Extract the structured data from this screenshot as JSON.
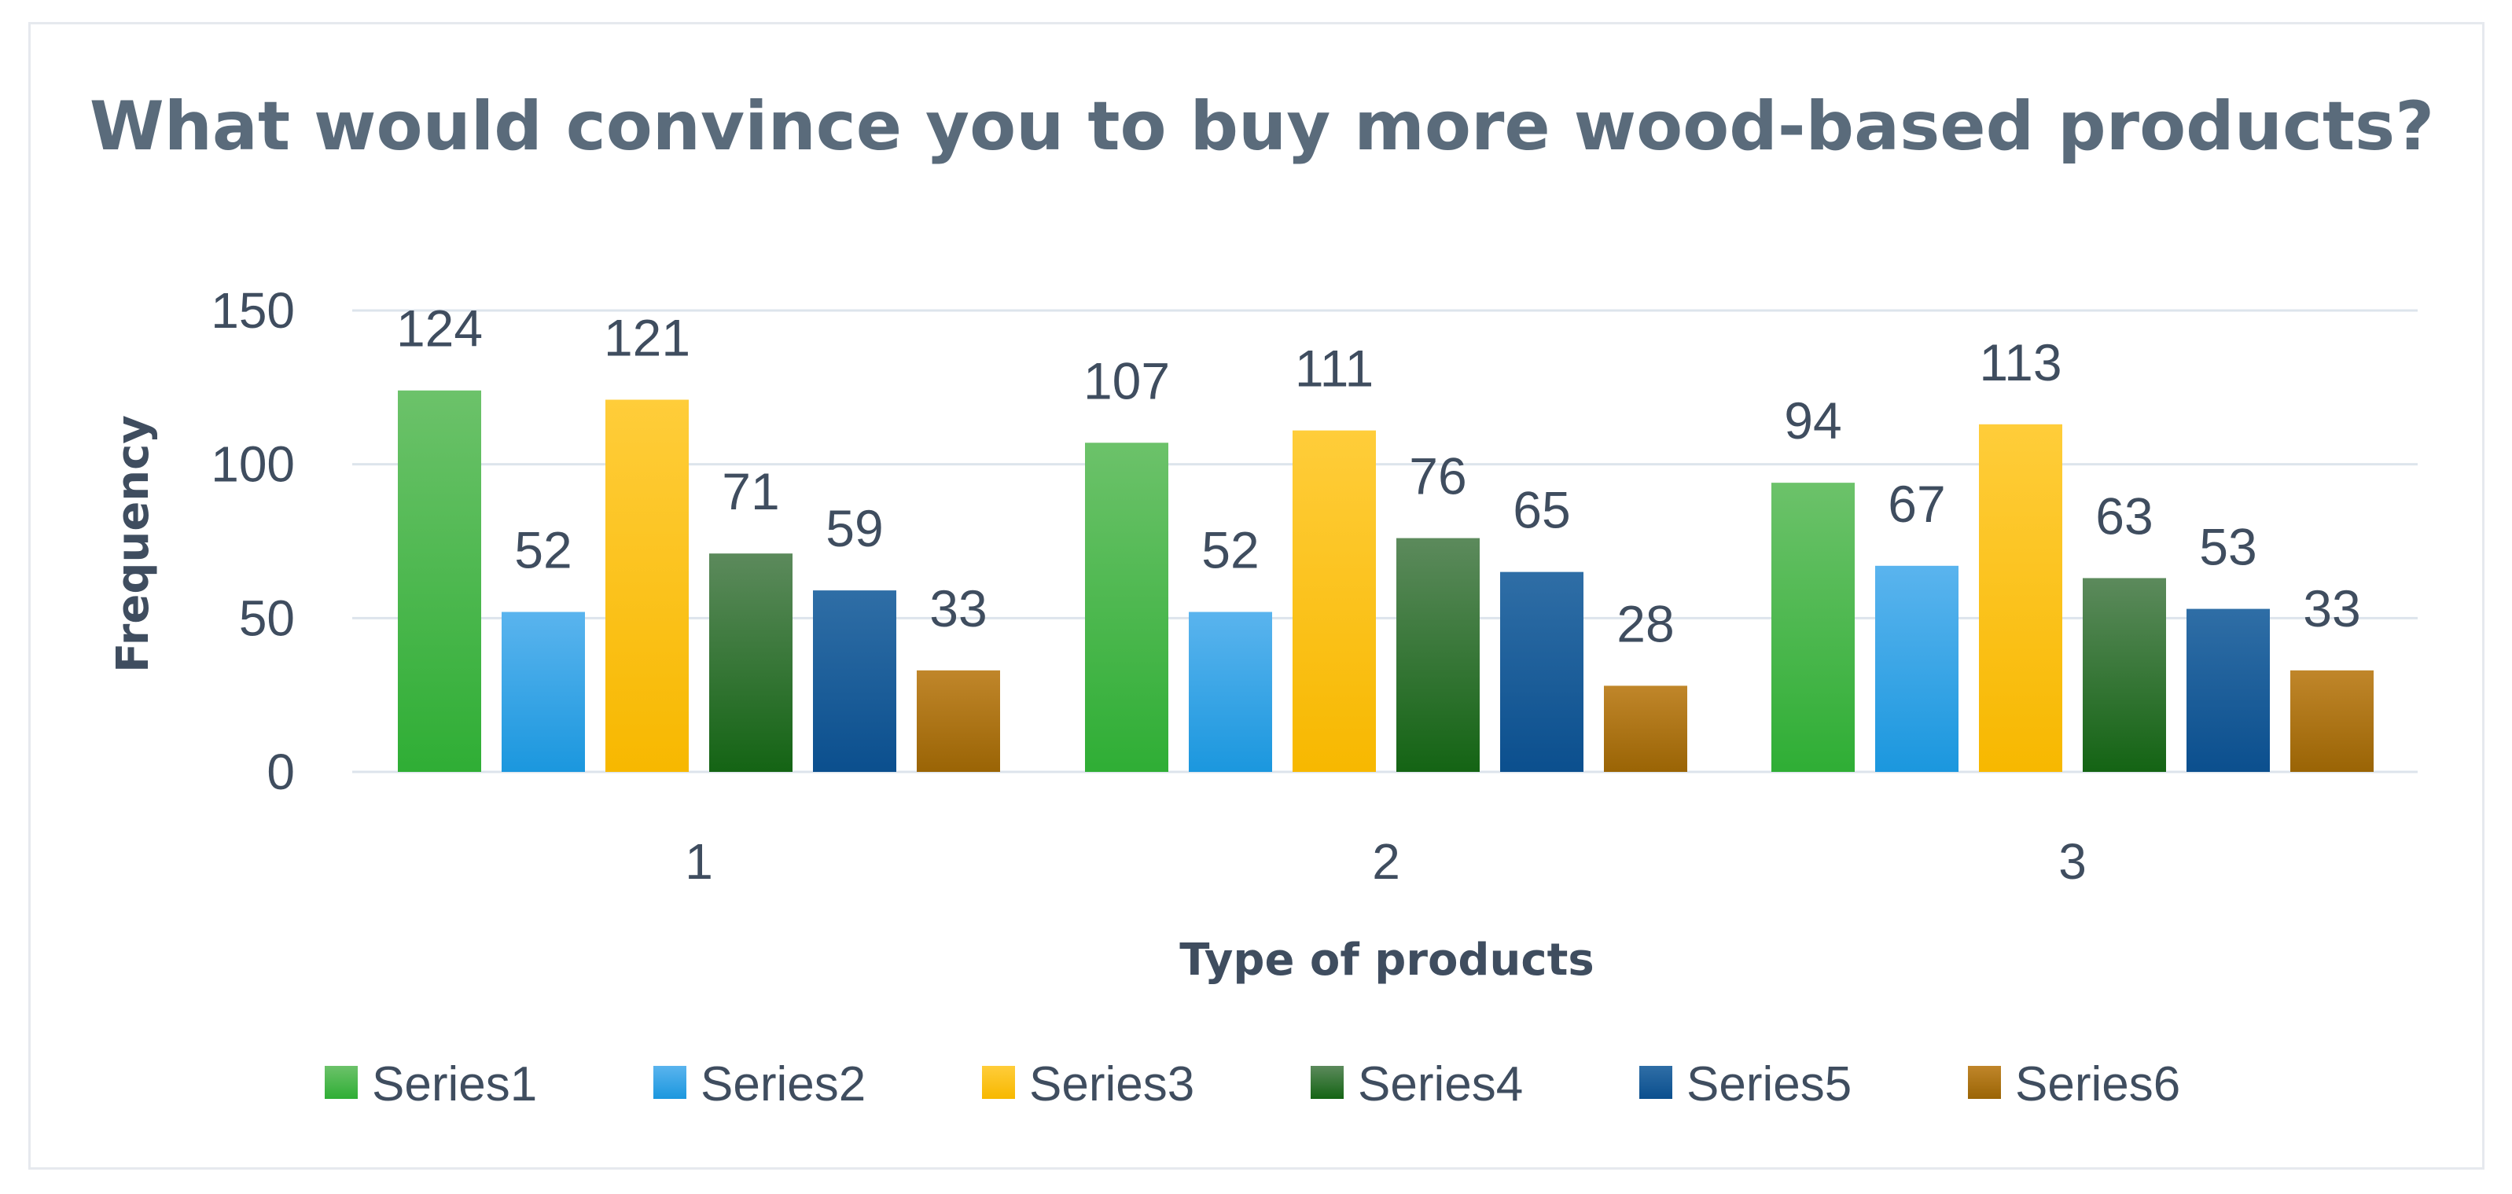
{
  "chart_data": {
    "type": "bar",
    "title": "What would convince you to buy more wood-based products?",
    "xlabel": "Type of products",
    "ylabel": "Frequency",
    "categories": [
      "1",
      "2",
      "3"
    ],
    "ylim": [
      0,
      150
    ],
    "yticks": [
      0,
      50,
      100,
      150
    ],
    "grid": true,
    "legend_position": "bottom",
    "series": [
      {
        "name": "Series1",
        "values": [
          124,
          107,
          94
        ],
        "color_top": "#6cc26a",
        "color_bottom": "#2fae35"
      },
      {
        "name": "Series2",
        "values": [
          52,
          52,
          67
        ],
        "color_top": "#5ab4ee",
        "color_bottom": "#1b97de"
      },
      {
        "name": "Series3",
        "values": [
          121,
          111,
          113
        ],
        "color_top": "#ffcd3a",
        "color_bottom": "#f7b800"
      },
      {
        "name": "Series4",
        "values": [
          71,
          76,
          63
        ],
        "color_top": "#5c8a5c",
        "color_bottom": "#146414"
      },
      {
        "name": "Series5",
        "values": [
          59,
          65,
          53
        ],
        "color_top": "#2f6ea6",
        "color_bottom": "#0b4f8e"
      },
      {
        "name": "Series6",
        "values": [
          33,
          28,
          33
        ],
        "color_top": "#c0862a",
        "color_bottom": "#9a6405"
      }
    ]
  }
}
